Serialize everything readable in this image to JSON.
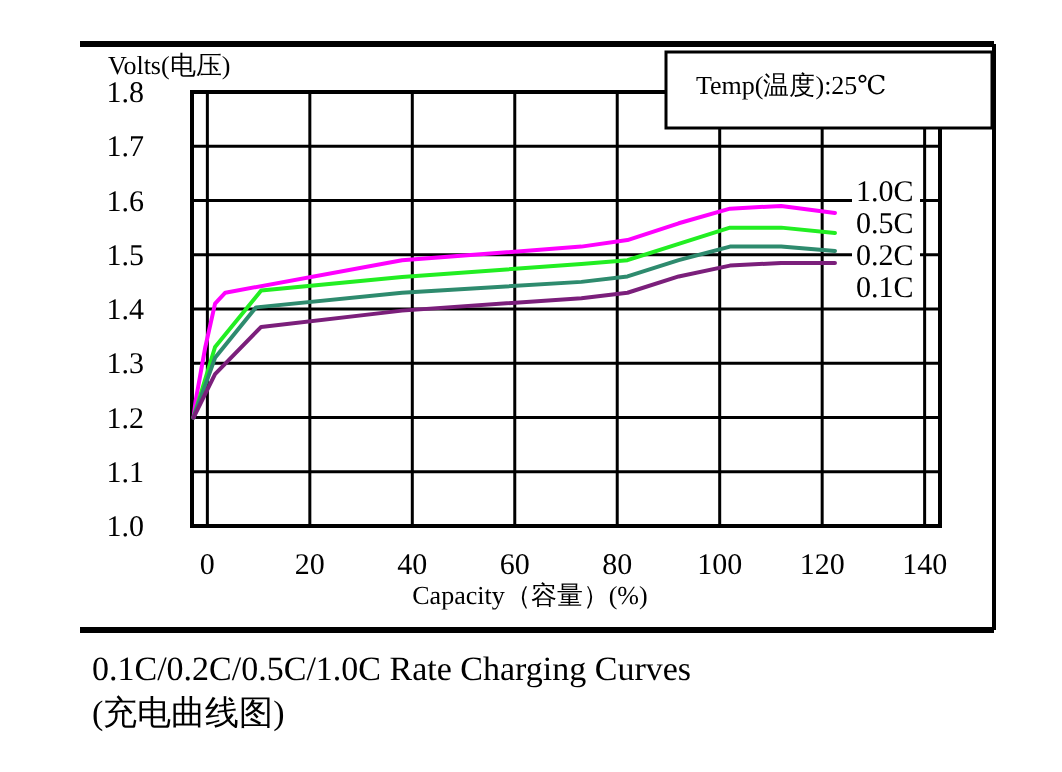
{
  "chart_data": {
    "type": "line",
    "title": "0.1C/0.2C/0.5C/1.0C Rate Charging Curves",
    "subtitle": "(充电曲线图)",
    "xlabel": "Capacity（容量）(%)",
    "ylabel": "Volts(电压)",
    "annotations": [
      "Temp(温度):25℃"
    ],
    "xlim": [
      -3,
      143
    ],
    "xticks": [
      0,
      20,
      40,
      60,
      80,
      100,
      120,
      140
    ],
    "ylim": [
      1.0,
      1.8
    ],
    "yticks": [
      {
        "value": 1.0,
        "label": "1.0"
      },
      1.1,
      1.2,
      1.3,
      1.4,
      1.5,
      1.6,
      1.7,
      1.8
    ],
    "grid": true,
    "marker": "none",
    "line_style": "solid",
    "series": [
      {
        "name": "1.0C",
        "color": "#ff00ff",
        "x": [
          -2.7,
          -2.3,
          -0.4,
          1.5,
          3.5,
          38,
          73,
          82,
          92,
          102,
          112,
          122.5
        ],
        "values": [
          1.2,
          1.23,
          1.33,
          1.41,
          1.43,
          1.49,
          1.515,
          1.527,
          1.558,
          1.585,
          1.59,
          1.577
        ]
      },
      {
        "name": "0.5C",
        "color": "#22ee22",
        "x": [
          -2.7,
          1.5,
          10.5,
          38,
          73,
          82,
          92,
          102,
          112,
          122.5
        ],
        "values": [
          1.2,
          1.33,
          1.434,
          1.459,
          1.483,
          1.49,
          1.52,
          1.55,
          1.55,
          1.54
        ]
      },
      {
        "name": "0.2C",
        "color": "#2e8b6e",
        "x": [
          -2.7,
          1.5,
          9.5,
          38,
          73,
          82,
          92,
          102,
          112,
          122.5
        ],
        "values": [
          1.2,
          1.31,
          1.403,
          1.43,
          1.45,
          1.46,
          1.49,
          1.515,
          1.515,
          1.507
        ]
      },
      {
        "name": "0.1C",
        "color": "#7b1f7b",
        "x": [
          -2.7,
          1.5,
          10.5,
          38,
          73,
          82,
          92,
          102,
          112,
          122.5
        ],
        "values": [
          1.2,
          1.28,
          1.367,
          1.397,
          1.42,
          1.43,
          1.46,
          1.48,
          1.485,
          1.485
        ]
      }
    ]
  }
}
